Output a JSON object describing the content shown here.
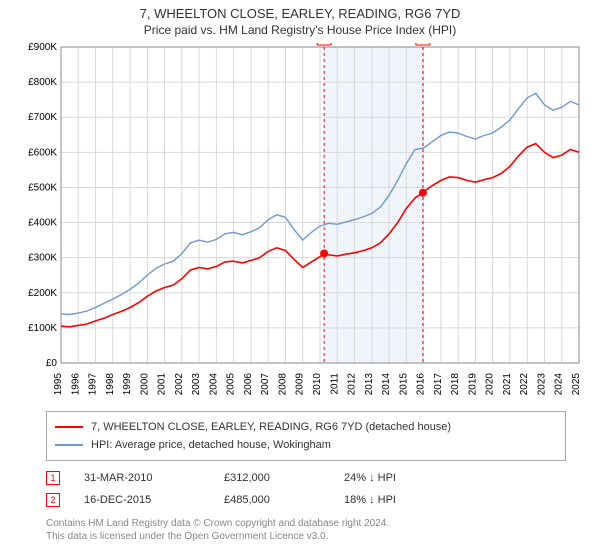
{
  "title": "7, WHEELTON CLOSE, EARLEY, READING, RG6 7YD",
  "subtitle": "Price paid vs. HM Land Registry's House Price Index (HPI)",
  "chart": {
    "type": "line",
    "plot_background": "#ffffff",
    "grid_color": "#d9d9d9",
    "plot_border_color": "#888888",
    "shaded_band": {
      "x_start": 2010.24,
      "x_end": 2015.96,
      "fill": "#f0f4fb"
    },
    "xlim": [
      1995,
      2025
    ],
    "x_ticks": [
      1995,
      1996,
      1997,
      1998,
      1999,
      2000,
      2001,
      2002,
      2003,
      2004,
      2005,
      2006,
      2007,
      2008,
      2009,
      2010,
      2011,
      2012,
      2013,
      2014,
      2015,
      2016,
      2017,
      2018,
      2019,
      2020,
      2021,
      2022,
      2023,
      2024,
      2025
    ],
    "x_tick_rotation_deg": -90,
    "x_tick_fontsize": 10,
    "ylim": [
      0,
      900000
    ],
    "y_ticks": [
      0,
      100000,
      200000,
      300000,
      400000,
      500000,
      600000,
      700000,
      800000,
      900000
    ],
    "y_tick_labels": [
      "£0",
      "£100K",
      "£200K",
      "£300K",
      "£400K",
      "£500K",
      "£600K",
      "£700K",
      "£800K",
      "£900K"
    ],
    "y_tick_fontsize": 10,
    "series": [
      {
        "name": "property",
        "label": "7, WHEELTON CLOSE, EARLEY, READING, RG6 7YD (detached house)",
        "color": "#ff0000",
        "line_width": 1.6,
        "data": [
          [
            1995.0,
            105000
          ],
          [
            1995.5,
            103000
          ],
          [
            1996.0,
            107000
          ],
          [
            1996.5,
            111000
          ],
          [
            1997.0,
            120000
          ],
          [
            1997.5,
            128000
          ],
          [
            1998.0,
            138000
          ],
          [
            1998.5,
            147000
          ],
          [
            1999.0,
            158000
          ],
          [
            1999.5,
            172000
          ],
          [
            2000.0,
            190000
          ],
          [
            2000.5,
            205000
          ],
          [
            2001.0,
            215000
          ],
          [
            2001.5,
            222000
          ],
          [
            2002.0,
            240000
          ],
          [
            2002.5,
            265000
          ],
          [
            2003.0,
            272000
          ],
          [
            2003.5,
            268000
          ],
          [
            2004.0,
            275000
          ],
          [
            2004.5,
            288000
          ],
          [
            2005.0,
            290000
          ],
          [
            2005.5,
            285000
          ],
          [
            2006.0,
            292000
          ],
          [
            2006.5,
            300000
          ],
          [
            2007.0,
            318000
          ],
          [
            2007.5,
            328000
          ],
          [
            2008.0,
            320000
          ],
          [
            2008.5,
            295000
          ],
          [
            2009.0,
            272000
          ],
          [
            2009.5,
            288000
          ],
          [
            2010.0,
            303000
          ],
          [
            2010.24,
            312000
          ],
          [
            2010.5,
            308000
          ],
          [
            2011.0,
            305000
          ],
          [
            2011.5,
            310000
          ],
          [
            2012.0,
            314000
          ],
          [
            2012.5,
            320000
          ],
          [
            2013.0,
            328000
          ],
          [
            2013.5,
            342000
          ],
          [
            2014.0,
            368000
          ],
          [
            2014.5,
            400000
          ],
          [
            2015.0,
            440000
          ],
          [
            2015.5,
            470000
          ],
          [
            2015.96,
            485000
          ],
          [
            2016.0,
            488000
          ],
          [
            2016.5,
            505000
          ],
          [
            2017.0,
            520000
          ],
          [
            2017.5,
            530000
          ],
          [
            2018.0,
            528000
          ],
          [
            2018.5,
            520000
          ],
          [
            2019.0,
            515000
          ],
          [
            2019.5,
            522000
          ],
          [
            2020.0,
            528000
          ],
          [
            2020.5,
            540000
          ],
          [
            2021.0,
            560000
          ],
          [
            2021.5,
            590000
          ],
          [
            2022.0,
            615000
          ],
          [
            2022.5,
            625000
          ],
          [
            2023.0,
            600000
          ],
          [
            2023.5,
            585000
          ],
          [
            2024.0,
            592000
          ],
          [
            2024.5,
            608000
          ],
          [
            2025.0,
            600000
          ]
        ]
      },
      {
        "name": "hpi",
        "label": "HPI: Average price, detached house, Wokingham",
        "color": "#6f99d1",
        "line_width": 1.4,
        "data": [
          [
            1995.0,
            140000
          ],
          [
            1995.5,
            138000
          ],
          [
            1996.0,
            142000
          ],
          [
            1996.5,
            148000
          ],
          [
            1997.0,
            158000
          ],
          [
            1997.5,
            170000
          ],
          [
            1998.0,
            182000
          ],
          [
            1998.5,
            195000
          ],
          [
            1999.0,
            210000
          ],
          [
            1999.5,
            228000
          ],
          [
            2000.0,
            250000
          ],
          [
            2000.5,
            270000
          ],
          [
            2001.0,
            282000
          ],
          [
            2001.5,
            290000
          ],
          [
            2002.0,
            312000
          ],
          [
            2002.5,
            342000
          ],
          [
            2003.0,
            350000
          ],
          [
            2003.5,
            344000
          ],
          [
            2004.0,
            352000
          ],
          [
            2004.5,
            368000
          ],
          [
            2005.0,
            372000
          ],
          [
            2005.5,
            365000
          ],
          [
            2006.0,
            374000
          ],
          [
            2006.5,
            385000
          ],
          [
            2007.0,
            408000
          ],
          [
            2007.5,
            422000
          ],
          [
            2008.0,
            415000
          ],
          [
            2008.5,
            380000
          ],
          [
            2009.0,
            350000
          ],
          [
            2009.5,
            372000
          ],
          [
            2010.0,
            390000
          ],
          [
            2010.5,
            398000
          ],
          [
            2011.0,
            395000
          ],
          [
            2011.5,
            402000
          ],
          [
            2012.0,
            408000
          ],
          [
            2012.5,
            416000
          ],
          [
            2013.0,
            426000
          ],
          [
            2013.5,
            444000
          ],
          [
            2014.0,
            478000
          ],
          [
            2014.5,
            520000
          ],
          [
            2015.0,
            568000
          ],
          [
            2015.5,
            608000
          ],
          [
            2016.0,
            612000
          ],
          [
            2016.5,
            630000
          ],
          [
            2017.0,
            648000
          ],
          [
            2017.5,
            658000
          ],
          [
            2018.0,
            655000
          ],
          [
            2018.5,
            645000
          ],
          [
            2019.0,
            638000
          ],
          [
            2019.5,
            648000
          ],
          [
            2020.0,
            655000
          ],
          [
            2020.5,
            672000
          ],
          [
            2021.0,
            692000
          ],
          [
            2021.5,
            725000
          ],
          [
            2022.0,
            755000
          ],
          [
            2022.5,
            768000
          ],
          [
            2023.0,
            735000
          ],
          [
            2023.5,
            720000
          ],
          [
            2024.0,
            728000
          ],
          [
            2024.5,
            745000
          ],
          [
            2025.0,
            735000
          ]
        ]
      }
    ],
    "event_markers": [
      {
        "n": "1",
        "x": 2010.24,
        "y": 312000,
        "dot_r": 4
      },
      {
        "n": "2",
        "x": 2015.96,
        "y": 485000,
        "dot_r": 4
      }
    ],
    "event_marker_style": {
      "box_border": "#ff0000",
      "box_size": 14,
      "dashed_line": "#ff0000",
      "dot_fill": "#ff0000"
    }
  },
  "legend": {
    "items": [
      {
        "color": "#ff0000",
        "label": "7, WHEELTON CLOSE, EARLEY, READING, RG6 7YD (detached house)"
      },
      {
        "color": "#6f99d1",
        "label": "HPI: Average price, detached house, Wokingham"
      }
    ]
  },
  "events_table": [
    {
      "n": "1",
      "date": "31-MAR-2010",
      "price": "£312,000",
      "delta": "24% ↓ HPI"
    },
    {
      "n": "2",
      "date": "16-DEC-2015",
      "price": "£485,000",
      "delta": "18% ↓ HPI"
    }
  ],
  "footer": {
    "line1": "Contains HM Land Registry data © Crown copyright and database right 2024.",
    "line2": "This data is licensed under the Open Government Licence v3.0."
  }
}
